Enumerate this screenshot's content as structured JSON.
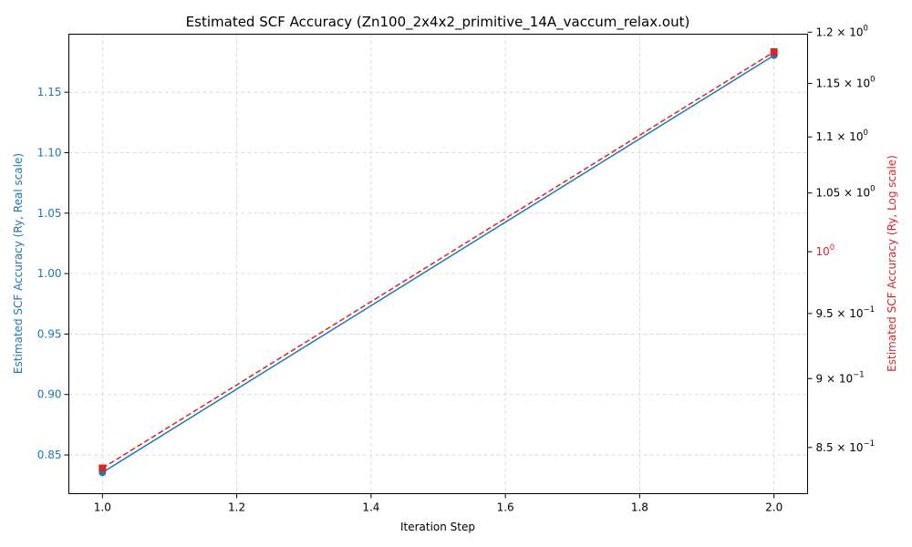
{
  "chart_data": {
    "type": "line",
    "title": "Estimated SCF Accuracy (Zn100_2x4x2_primitive_14A_vaccum_relax.out)",
    "xlabel": "Iteration Step",
    "ylabel_left": "Estimated SCF Accuracy (Ry, Real scale)",
    "ylabel_right": "Estimated SCF Accuracy (Ry, Log scale)",
    "x": [
      1,
      2
    ],
    "series": [
      {
        "axis": "left",
        "scale": "linear",
        "values": [
          0.8355,
          1.1805
        ],
        "color": "#1f77b4",
        "marker": "circle",
        "line": "solid"
      },
      {
        "axis": "right",
        "scale": "log",
        "values": [
          0.8355,
          1.1805
        ],
        "color": "#d62728",
        "marker": "square",
        "line": "dashed"
      }
    ],
    "xlim": [
      0.95,
      2.05
    ],
    "ylim_left": [
      0.818,
      1.198
    ],
    "ylim_right": [
      0.818,
      1.198
    ],
    "x_ticks": [
      1.0,
      1.2,
      1.4,
      1.6,
      1.8,
      2.0
    ],
    "x_tick_labels": [
      "1.0",
      "1.2",
      "1.4",
      "1.6",
      "1.8",
      "2.0"
    ],
    "y_left_ticks": [
      0.85,
      0.9,
      0.95,
      1.0,
      1.05,
      1.1,
      1.15
    ],
    "y_left_tick_labels": [
      "0.85",
      "0.90",
      "0.95",
      "1.00",
      "1.05",
      "1.10",
      "1.15"
    ],
    "y_right_ticks": [
      {
        "value": 0.85,
        "mantissa": "8.5",
        "exponent": "−1"
      },
      {
        "value": 0.9,
        "mantissa": "9",
        "exponent": "−1"
      },
      {
        "value": 0.95,
        "mantissa": "9.5",
        "exponent": "−1"
      },
      {
        "value": 1.0,
        "mantissa": "",
        "exponent": "0"
      },
      {
        "value": 1.05,
        "mantissa": "1.05",
        "exponent": "0"
      },
      {
        "value": 1.1,
        "mantissa": "1.1",
        "exponent": "0"
      },
      {
        "value": 1.15,
        "mantissa": "1.15",
        "exponent": "0"
      },
      {
        "value": 1.2,
        "mantissa": "1.2",
        "exponent": "0"
      }
    ],
    "grid": true,
    "left_axis_color": "#1f77b4",
    "right_axis_color": "#d62728",
    "grid_color": "#d3d3d3"
  }
}
